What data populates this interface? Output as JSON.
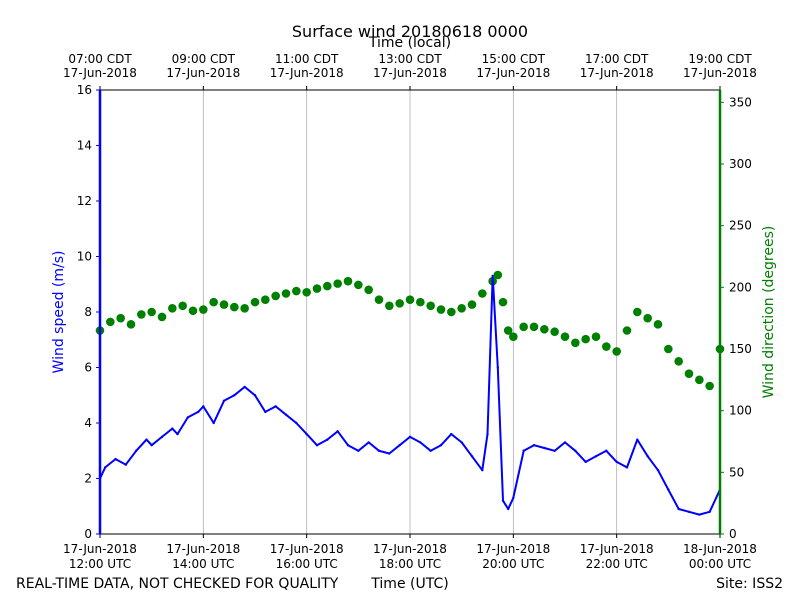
{
  "chart_data": {
    "type": "line",
    "title": "Surface wind 20180618 0000",
    "top_axis_label": "Time (local)",
    "xlabel": "Time (UTC)",
    "ylabel_left": "Wind speed (m/s)",
    "ylabel_right": "Wind direction (degrees)",
    "xlim_utc_hours": [
      12,
      24
    ],
    "ylim_left": [
      0,
      16
    ],
    "ylim_right": [
      0,
      360
    ],
    "left_ticks": [
      0,
      2,
      4,
      6,
      8,
      10,
      12,
      14,
      16
    ],
    "right_ticks": [
      0,
      50,
      100,
      150,
      200,
      250,
      300,
      350
    ],
    "grid": "vertical",
    "bottom_ticks": [
      {
        "hour": 12,
        "date": "17-Jun-2018",
        "time": "12:00 UTC"
      },
      {
        "hour": 14,
        "date": "17-Jun-2018",
        "time": "14:00 UTC"
      },
      {
        "hour": 16,
        "date": "17-Jun-2018",
        "time": "16:00 UTC"
      },
      {
        "hour": 18,
        "date": "17-Jun-2018",
        "time": "18:00 UTC"
      },
      {
        "hour": 20,
        "date": "17-Jun-2018",
        "time": "20:00 UTC"
      },
      {
        "hour": 22,
        "date": "17-Jun-2018",
        "time": "22:00 UTC"
      },
      {
        "hour": 24,
        "date": "18-Jun-2018",
        "time": "00:00 UTC"
      }
    ],
    "top_ticks": [
      {
        "hour": 12,
        "time": "07:00 CDT",
        "date": "17-Jun-2018"
      },
      {
        "hour": 14,
        "time": "09:00 CDT",
        "date": "17-Jun-2018"
      },
      {
        "hour": 16,
        "time": "11:00 CDT",
        "date": "17-Jun-2018"
      },
      {
        "hour": 18,
        "time": "13:00 CDT",
        "date": "17-Jun-2018"
      },
      {
        "hour": 20,
        "time": "15:00 CDT",
        "date": "17-Jun-2018"
      },
      {
        "hour": 22,
        "time": "17:00 CDT",
        "date": "17-Jun-2018"
      },
      {
        "hour": 24,
        "time": "19:00 CDT",
        "date": "17-Jun-2018"
      }
    ],
    "series": [
      {
        "name": "Wind speed",
        "axis": "left",
        "style": "line",
        "color": "#0000ff",
        "x": [
          12.0,
          12.1,
          12.3,
          12.5,
          12.7,
          12.9,
          13.0,
          13.2,
          13.4,
          13.5,
          13.7,
          13.9,
          14.0,
          14.2,
          14.4,
          14.6,
          14.8,
          15.0,
          15.2,
          15.4,
          15.6,
          15.8,
          16.0,
          16.2,
          16.4,
          16.6,
          16.8,
          17.0,
          17.2,
          17.4,
          17.6,
          17.8,
          18.0,
          18.2,
          18.4,
          18.6,
          18.8,
          19.0,
          19.2,
          19.4,
          19.5,
          19.6,
          19.7,
          19.8,
          19.9,
          20.0,
          20.2,
          20.4,
          20.6,
          20.8,
          21.0,
          21.2,
          21.4,
          21.6,
          21.8,
          22.0,
          22.2,
          22.4,
          22.6,
          22.8,
          23.0,
          23.2,
          23.4,
          23.6,
          23.8,
          24.0
        ],
        "values": [
          2.0,
          2.4,
          2.7,
          2.5,
          3.0,
          3.4,
          3.2,
          3.5,
          3.8,
          3.6,
          4.2,
          4.4,
          4.6,
          4.0,
          4.8,
          5.0,
          5.3,
          5.0,
          4.4,
          4.6,
          4.3,
          4.0,
          3.6,
          3.2,
          3.4,
          3.7,
          3.2,
          3.0,
          3.3,
          3.0,
          2.9,
          3.2,
          3.5,
          3.3,
          3.0,
          3.2,
          3.6,
          3.3,
          2.8,
          2.3,
          3.6,
          9.3,
          6.0,
          1.2,
          0.9,
          1.3,
          3.0,
          3.2,
          3.1,
          3.0,
          3.3,
          3.0,
          2.6,
          2.8,
          3.0,
          2.6,
          2.4,
          3.4,
          2.8,
          2.3,
          1.6,
          0.9,
          0.8,
          0.7,
          0.8,
          1.6
        ]
      },
      {
        "name": "Wind direction",
        "axis": "right",
        "style": "scatter",
        "color": "#008000",
        "x": [
          12.0,
          12.2,
          12.4,
          12.6,
          12.8,
          13.0,
          13.2,
          13.4,
          13.6,
          13.8,
          14.0,
          14.2,
          14.4,
          14.6,
          14.8,
          15.0,
          15.2,
          15.4,
          15.6,
          15.8,
          16.0,
          16.2,
          16.4,
          16.6,
          16.8,
          17.0,
          17.2,
          17.4,
          17.6,
          17.8,
          18.0,
          18.2,
          18.4,
          18.6,
          18.8,
          19.0,
          19.2,
          19.4,
          19.6,
          19.7,
          19.8,
          19.9,
          20.0,
          20.2,
          20.4,
          20.6,
          20.8,
          21.0,
          21.2,
          21.4,
          21.6,
          21.8,
          22.0,
          22.2,
          22.4,
          22.6,
          22.8,
          23.0,
          23.2,
          23.4,
          23.6,
          23.8,
          24.0
        ],
        "values": [
          165,
          172,
          175,
          170,
          178,
          180,
          176,
          183,
          185,
          181,
          182,
          188,
          186,
          184,
          183,
          188,
          190,
          193,
          195,
          197,
          196,
          199,
          201,
          203,
          205,
          202,
          198,
          190,
          185,
          187,
          190,
          188,
          185,
          182,
          180,
          183,
          186,
          195,
          205,
          210,
          188,
          165,
          160,
          168,
          168,
          166,
          164,
          160,
          155,
          158,
          160,
          152,
          148,
          165,
          180,
          175,
          170,
          150,
          140,
          130,
          125,
          120,
          150
        ]
      }
    ]
  },
  "footer": {
    "left": "REAL-TIME DATA, NOT CHECKED FOR QUALITY",
    "center": "Time (UTC)",
    "right": "Site: ISS2"
  }
}
